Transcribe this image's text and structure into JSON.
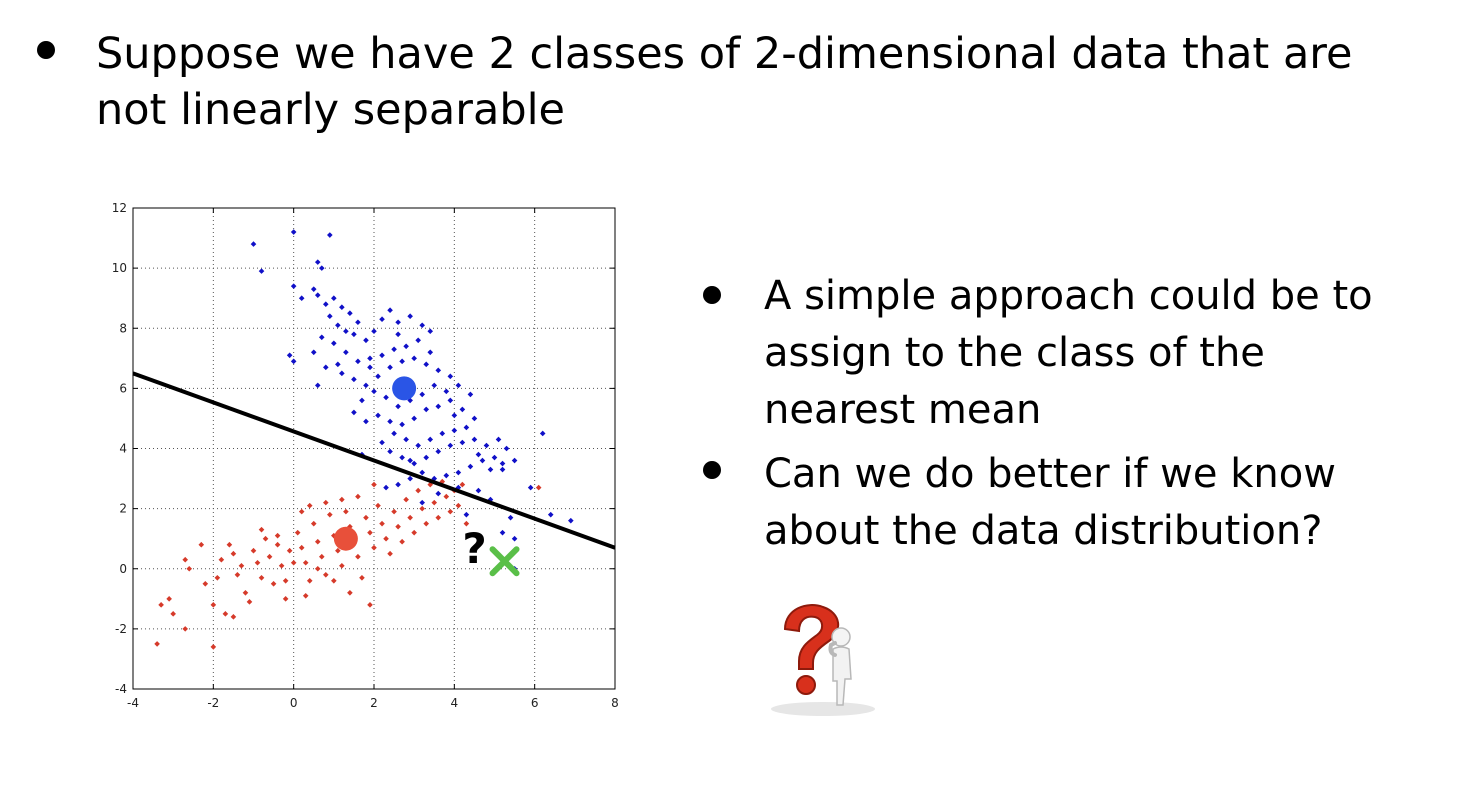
{
  "slide": {
    "bullet_main": "Suppose we have 2 classes of 2-dimensional data that are not linearly separable",
    "bullets_side": [
      "A simple approach could be to assign to the class of the nearest mean",
      "Can we do better if we know about the data distribution?"
    ],
    "question_figure_icon": "question-mark-thinker-icon"
  },
  "chart_data": {
    "type": "scatter",
    "title": "",
    "xlabel": "",
    "ylabel": "",
    "xlim": [
      -4,
      8
    ],
    "ylim": [
      -4,
      12
    ],
    "xticks": [
      "-4",
      "-2",
      "0",
      "2",
      "4",
      "6",
      "8"
    ],
    "yticks": [
      "-4",
      "-2",
      "0",
      "2",
      "4",
      "6",
      "8",
      "10",
      "12"
    ],
    "grid": true,
    "colors": {
      "class_blue": "#1010c8",
      "class_red": "#d63a2a",
      "mean_blue": "#2a55e6",
      "mean_red": "#e8503a",
      "query": "#5abf48",
      "line": "#000000"
    },
    "series": [
      {
        "color": "#1010c8",
        "points": [
          [
            -1,
            10.8
          ],
          [
            -0.8,
            9.9
          ],
          [
            0,
            11.2
          ],
          [
            0.9,
            11.1
          ],
          [
            0.6,
            10.2
          ],
          [
            0.7,
            10
          ],
          [
            0,
            9.4
          ],
          [
            0.2,
            9
          ],
          [
            0.5,
            9.3
          ],
          [
            0.6,
            9.1
          ],
          [
            0.8,
            8.8
          ],
          [
            1,
            9
          ],
          [
            1.2,
            8.7
          ],
          [
            1.4,
            8.5
          ],
          [
            1.6,
            8.2
          ],
          [
            0.9,
            8.4
          ],
          [
            1.1,
            8.1
          ],
          [
            1.3,
            7.9
          ],
          [
            1.5,
            7.8
          ],
          [
            1.8,
            7.6
          ],
          [
            2,
            7.9
          ],
          [
            2.2,
            8.3
          ],
          [
            2.4,
            8.6
          ],
          [
            2.6,
            8.2
          ],
          [
            2.9,
            8.4
          ],
          [
            3.2,
            8.1
          ],
          [
            3.4,
            7.9
          ],
          [
            3.1,
            7.6
          ],
          [
            2.8,
            7.4
          ],
          [
            2.5,
            7.3
          ],
          [
            2.2,
            7.1
          ],
          [
            1.9,
            7
          ],
          [
            1.6,
            6.9
          ],
          [
            1.3,
            7.2
          ],
          [
            1,
            7.5
          ],
          [
            0.7,
            7.7
          ],
          [
            0.5,
            7.2
          ],
          [
            0.8,
            6.7
          ],
          [
            1.2,
            6.5
          ],
          [
            1.5,
            6.3
          ],
          [
            1.8,
            6.1
          ],
          [
            2.1,
            6.4
          ],
          [
            2.4,
            6.7
          ],
          [
            2.7,
            6.9
          ],
          [
            3,
            7
          ],
          [
            3.3,
            6.8
          ],
          [
            3.6,
            6.6
          ],
          [
            3.9,
            6.4
          ],
          [
            4.1,
            6.1
          ],
          [
            3.8,
            5.9
          ],
          [
            3.5,
            6.1
          ],
          [
            3.2,
            5.8
          ],
          [
            2.9,
            5.6
          ],
          [
            2.6,
            5.4
          ],
          [
            2.3,
            5.7
          ],
          [
            2,
            5.9
          ],
          [
            1.7,
            5.6
          ],
          [
            1.5,
            5.2
          ],
          [
            1.8,
            4.9
          ],
          [
            2.1,
            5.1
          ],
          [
            2.4,
            4.9
          ],
          [
            2.7,
            4.8
          ],
          [
            3,
            5
          ],
          [
            3.3,
            5.3
          ],
          [
            3.6,
            5.4
          ],
          [
            3.9,
            5.6
          ],
          [
            4.2,
            5.3
          ],
          [
            4.5,
            5
          ],
          [
            4.3,
            4.7
          ],
          [
            4,
            4.6
          ],
          [
            3.7,
            4.5
          ],
          [
            3.4,
            4.3
          ],
          [
            3.1,
            4.1
          ],
          [
            2.8,
            4.3
          ],
          [
            2.5,
            4.5
          ],
          [
            2.2,
            4.2
          ],
          [
            2.4,
            3.9
          ],
          [
            2.7,
            3.7
          ],
          [
            3,
            3.5
          ],
          [
            3.3,
            3.7
          ],
          [
            3.6,
            3.9
          ],
          [
            3.9,
            4.1
          ],
          [
            4.2,
            4.2
          ],
          [
            4.5,
            4.3
          ],
          [
            4.8,
            4.1
          ],
          [
            5.1,
            4.3
          ],
          [
            5.3,
            4
          ],
          [
            5,
            3.7
          ],
          [
            4.7,
            3.6
          ],
          [
            4.4,
            3.4
          ],
          [
            4.1,
            3.2
          ],
          [
            3.8,
            3.1
          ],
          [
            3.5,
            3
          ],
          [
            3.2,
            3.2
          ],
          [
            2.9,
            3
          ],
          [
            2.6,
            2.8
          ],
          [
            2.3,
            2.7
          ],
          [
            0,
            6.9
          ],
          [
            -0.1,
            7.1
          ],
          [
            0.6,
            6.1
          ],
          [
            1.1,
            6.8
          ],
          [
            1.9,
            6.7
          ],
          [
            2.6,
            7.8
          ],
          [
            3.4,
            7.2
          ],
          [
            4,
            5.1
          ],
          [
            4.4,
            5.8
          ],
          [
            4.6,
            3.8
          ],
          [
            4.9,
            3.3
          ],
          [
            5.2,
            3.3
          ],
          [
            5.5,
            3.6
          ],
          [
            5.9,
            2.7
          ],
          [
            6.2,
            4.5
          ],
          [
            6.4,
            1.8
          ],
          [
            6.9,
            1.6
          ],
          [
            5.4,
            1.7
          ],
          [
            5.5,
            1
          ],
          [
            5.2,
            1.2
          ],
          [
            3.6,
            2.5
          ],
          [
            4.1,
            2.7
          ],
          [
            4.6,
            2.6
          ],
          [
            4.9,
            2.3
          ],
          [
            4.3,
            1.8
          ],
          [
            5.5,
            0
          ],
          [
            5.2,
            3.5
          ],
          [
            3.2,
            2.2
          ],
          [
            2.9,
            3.6
          ],
          [
            1.7,
            3.8
          ]
        ]
      },
      {
        "color": "#d63a2a",
        "points": [
          [
            -3.4,
            -2.5
          ],
          [
            -3.3,
            -1.2
          ],
          [
            -3.1,
            -1
          ],
          [
            -3,
            -1.5
          ],
          [
            -2.7,
            -2
          ],
          [
            -2.7,
            0.3
          ],
          [
            -2.6,
            0
          ],
          [
            -2.3,
            0.8
          ],
          [
            -2.2,
            -0.5
          ],
          [
            -2,
            -1.2
          ],
          [
            -2,
            -2.6
          ],
          [
            -1.9,
            -0.3
          ],
          [
            -1.8,
            0.3
          ],
          [
            -1.7,
            -1.5
          ],
          [
            -1.6,
            0.8
          ],
          [
            -1.5,
            0.5
          ],
          [
            -1.4,
            -0.2
          ],
          [
            -1.3,
            0.1
          ],
          [
            -1.2,
            -0.8
          ],
          [
            -1.1,
            -1.1
          ],
          [
            -1,
            0.6
          ],
          [
            -0.9,
            0.2
          ],
          [
            -0.8,
            -0.3
          ],
          [
            -0.7,
            1
          ],
          [
            -0.6,
            0.4
          ],
          [
            -0.5,
            -0.5
          ],
          [
            -0.4,
            0.8
          ],
          [
            -0.3,
            0.1
          ],
          [
            -0.2,
            -0.4
          ],
          [
            -0.1,
            0.6
          ],
          [
            0,
            0.2
          ],
          [
            0.1,
            1.2
          ],
          [
            0.2,
            0.7
          ],
          [
            0.3,
            0.2
          ],
          [
            0.4,
            -0.4
          ],
          [
            0.5,
            1.5
          ],
          [
            0.6,
            0.9
          ],
          [
            0.7,
            0.4
          ],
          [
            0.8,
            -0.2
          ],
          [
            0.9,
            1.8
          ],
          [
            1,
            1.1
          ],
          [
            1.1,
            0.6
          ],
          [
            1.2,
            0.1
          ],
          [
            1.3,
            1.9
          ],
          [
            1.4,
            1.4
          ],
          [
            1.5,
            0.9
          ],
          [
            1.6,
            0.4
          ],
          [
            1.7,
            -0.3
          ],
          [
            1.8,
            1.7
          ],
          [
            1.9,
            1.2
          ],
          [
            2,
            0.7
          ],
          [
            2.1,
            2.1
          ],
          [
            2.2,
            1.5
          ],
          [
            2.3,
            1
          ],
          [
            2.4,
            0.5
          ],
          [
            2.5,
            1.9
          ],
          [
            2.6,
            1.4
          ],
          [
            2.7,
            0.9
          ],
          [
            2.8,
            2.3
          ],
          [
            2.9,
            1.7
          ],
          [
            3,
            1.2
          ],
          [
            3.1,
            2.6
          ],
          [
            3.2,
            2
          ],
          [
            3.3,
            1.5
          ],
          [
            3.4,
            2.8
          ],
          [
            3.5,
            2.2
          ],
          [
            3.6,
            1.7
          ],
          [
            3.7,
            2.9
          ],
          [
            3.8,
            2.4
          ],
          [
            3.9,
            1.9
          ],
          [
            4,
            2.6
          ],
          [
            4.1,
            2.1
          ],
          [
            4.2,
            2.8
          ],
          [
            4.3,
            1.5
          ],
          [
            -0.8,
            1.3
          ],
          [
            -0.4,
            1.1
          ],
          [
            0.2,
            1.9
          ],
          [
            0.4,
            2.1
          ],
          [
            1.2,
            2.3
          ],
          [
            1.6,
            2.4
          ],
          [
            2,
            2.8
          ],
          [
            0.8,
            2.2
          ],
          [
            0.6,
            0
          ],
          [
            1,
            -0.4
          ],
          [
            1.4,
            -0.8
          ],
          [
            1.9,
            -1.2
          ],
          [
            0.3,
            -0.9
          ],
          [
            -0.2,
            -1
          ],
          [
            -1.5,
            -1.6
          ],
          [
            6.1,
            2.7
          ]
        ]
      }
    ],
    "means": [
      {
        "color": "#2a55e6",
        "x": 2.75,
        "y": 6
      },
      {
        "color": "#e8503a",
        "x": 1.3,
        "y": 1
      }
    ],
    "decision_line": {
      "x1": -4,
      "y1": 6.5,
      "x2": 8,
      "y2": 0.7
    },
    "query_point": {
      "label": "?",
      "x": 5.25,
      "y": 0.25
    }
  }
}
